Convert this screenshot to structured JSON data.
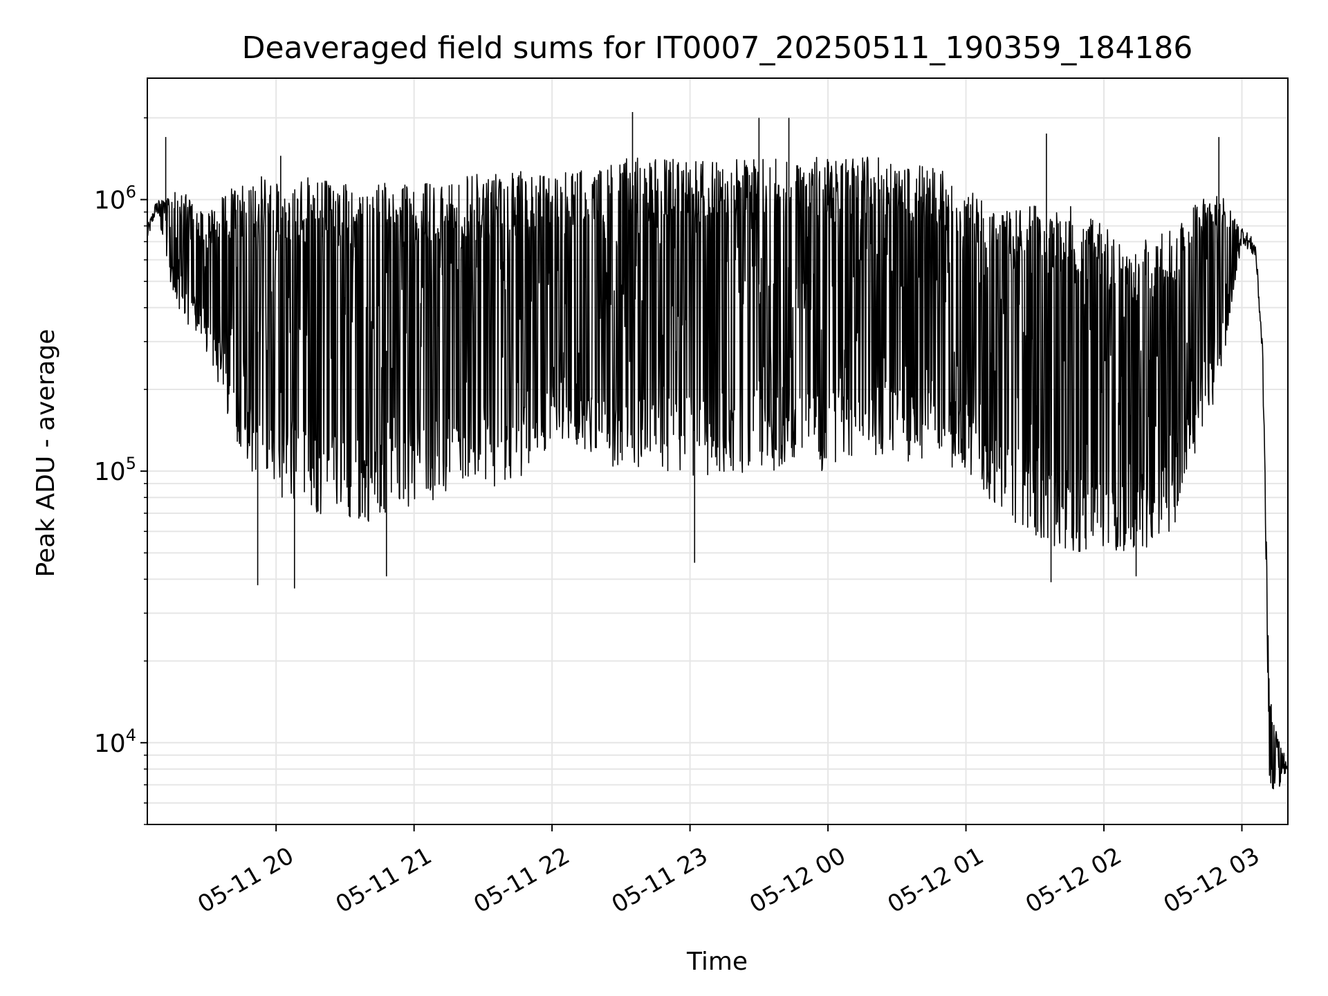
{
  "chart_data": {
    "type": "line",
    "title": "Deaveraged field sums for IT0007_20250511_190359_184186",
    "xlabel": "Time",
    "ylabel": "Peak ADU - average",
    "y_scale": "log",
    "ylim": [
      5000,
      2800000
    ],
    "xlim": [
      "2025-05-11 19:04",
      "2025-05-12 03:20"
    ],
    "x_ticks": [
      "2025-05-11 20:00",
      "2025-05-11 21:00",
      "2025-05-11 22:00",
      "2025-05-11 23:00",
      "2025-05-12 00:00",
      "2025-05-12 01:00",
      "2025-05-12 02:00",
      "2025-05-12 03:00"
    ],
    "x_tick_labels": [
      "05-11 20",
      "05-11 21",
      "05-11 22",
      "05-11 23",
      "05-12 00",
      "05-12 01",
      "05-12 02",
      "05-12 03"
    ],
    "y_ticks": [
      10000,
      100000,
      1000000
    ],
    "y_tick_labels": [
      {
        "base": "10",
        "exp": "4"
      },
      {
        "base": "10",
        "exp": "5"
      },
      {
        "base": "10",
        "exp": "6"
      }
    ],
    "grid": true,
    "line_color": "#000000",
    "grid_color": "#e6e6e6",
    "series": [
      {
        "x": [
          "2025-05-11 19:04",
          "2025-05-11 19:08",
          "2025-05-11 19:14",
          "2025-05-11 19:20",
          "2025-05-11 19:26",
          "2025-05-11 19:32",
          "2025-05-11 19:40",
          "2025-05-11 19:50",
          "2025-05-11 20:00",
          "2025-05-11 20:15",
          "2025-05-11 20:30",
          "2025-05-11 20:45",
          "2025-05-11 21:00",
          "2025-05-11 21:15",
          "2025-05-11 21:30",
          "2025-05-11 21:45",
          "2025-05-11 22:00",
          "2025-05-11 22:15",
          "2025-05-11 22:30",
          "2025-05-11 22:45",
          "2025-05-11 23:00",
          "2025-05-11 23:15",
          "2025-05-11 23:30",
          "2025-05-11 23:45",
          "2025-05-12 00:00",
          "2025-05-12 00:15",
          "2025-05-12 00:30",
          "2025-05-12 00:45",
          "2025-05-12 01:00",
          "2025-05-12 01:15",
          "2025-05-12 01:30",
          "2025-05-12 01:45",
          "2025-05-12 02:00",
          "2025-05-12 02:15",
          "2025-05-12 02:30",
          "2025-05-12 02:40",
          "2025-05-12 02:50",
          "2025-05-12 03:00",
          "2025-05-12 03:06",
          "2025-05-12 03:09",
          "2025-05-12 03:12",
          "2025-05-12 03:15",
          "2025-05-12 03:20"
        ],
        "upper": [
          800000,
          1000000,
          1050000,
          1100000,
          900000,
          950000,
          1100000,
          1200000,
          1250000,
          1200000,
          1150000,
          1150000,
          1150000,
          1200000,
          1250000,
          1300000,
          1250000,
          1300000,
          1400000,
          1500000,
          1450000,
          1450000,
          1400000,
          1450000,
          1450000,
          1450000,
          1400000,
          1350000,
          1150000,
          900000,
          950000,
          950000,
          800000,
          700000,
          800000,
          1000000,
          1100000,
          800000,
          700000,
          300000,
          15000,
          11000,
          9000
        ],
        "lower": [
          700000,
          900000,
          500000,
          350000,
          300000,
          250000,
          150000,
          90000,
          80000,
          70000,
          65000,
          65000,
          75000,
          80000,
          80000,
          85000,
          130000,
          120000,
          100000,
          100000,
          95000,
          95000,
          100000,
          100000,
          100000,
          110000,
          110000,
          105000,
          100000,
          70000,
          55000,
          50000,
          50000,
          50000,
          60000,
          120000,
          200000,
          700000,
          600000,
          250000,
          7000,
          6500,
          8000
        ],
        "spikes_high": [
          [
            "2025-05-11 19:12",
            1700000
          ],
          [
            "2025-05-11 20:02",
            1450000
          ],
          [
            "2025-05-11 22:35",
            2100000
          ],
          [
            "2025-05-11 23:30",
            2000000
          ],
          [
            "2025-05-11 23:43",
            2000000
          ],
          [
            "2025-05-12 01:35",
            1750000
          ],
          [
            "2025-05-12 02:50",
            1700000
          ]
        ],
        "spikes_low": [
          [
            "2025-05-11 19:52",
            38000
          ],
          [
            "2025-05-11 20:08",
            37000
          ],
          [
            "2025-05-11 20:48",
            41000
          ],
          [
            "2025-05-11 23:02",
            46000
          ],
          [
            "2025-05-12 01:37",
            39000
          ],
          [
            "2025-05-12 02:14",
            41000
          ]
        ]
      }
    ]
  }
}
